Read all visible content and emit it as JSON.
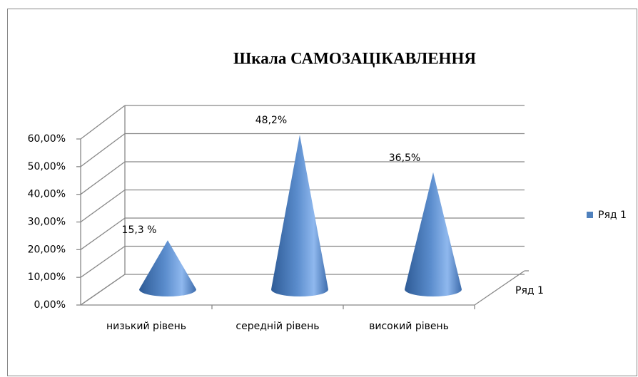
{
  "chart_data": {
    "type": "cone3d",
    "title": "Шкала САМОЗАЦІКАВЛЕННЯ",
    "categories": [
      "низький рівень",
      "середній рівень",
      "високий рівень"
    ],
    "series": [
      {
        "name": "Ряд 1",
        "color": "#4f81bd",
        "values": [
          15.3,
          48.2,
          36.5
        ],
        "value_labels": [
          "15,3 %",
          "48,2%",
          "36,5%"
        ]
      }
    ],
    "ylim": [
      0,
      60
    ],
    "yticks": [
      {
        "value": 0,
        "label": "0,00%"
      },
      {
        "value": 10,
        "label": "10,00%"
      },
      {
        "value": 20,
        "label": "20,00%"
      },
      {
        "value": 30,
        "label": "30,00%"
      },
      {
        "value": 40,
        "label": "40,00%"
      },
      {
        "value": 50,
        "label": "50,00%"
      },
      {
        "value": 60,
        "label": "60,00%"
      }
    ],
    "grid": true,
    "legend": "right"
  }
}
